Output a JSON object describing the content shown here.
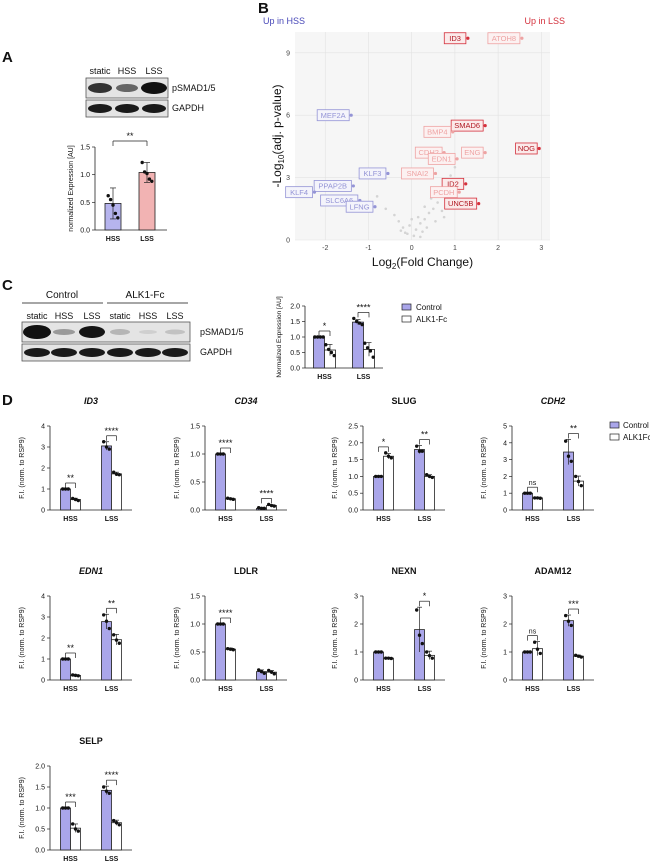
{
  "panel_labels": {
    "a": "A",
    "b": "B",
    "c": "C",
    "d": "D"
  },
  "colors": {
    "control": "#aaa6ea",
    "lss_pink": "#f2b3b3",
    "hss_blue": "#b6b4ee",
    "sig_red": "#d4303c",
    "up_hss": "#4848b8",
    "up_lss": "#d4303c"
  },
  "blot_a": {
    "lanes": [
      "static",
      "HSS",
      "LSS"
    ],
    "rows": [
      "pSMAD1/5",
      "GAPDH"
    ]
  },
  "blot_c": {
    "groups": [
      "Control",
      "ALK1-Fc"
    ],
    "lanes": [
      "static",
      "HSS",
      "LSS",
      "static",
      "HSS",
      "LSS"
    ],
    "rows": [
      "pSMAD1/5",
      "GAPDH"
    ]
  },
  "legend": {
    "control": "Control",
    "alk1fc_c": "ALK1-Fc",
    "alk1fc_d": "ALK1Fc"
  },
  "volcano": {
    "up_hss": "Up in HSS",
    "up_lss": "Up in LSS",
    "genes": [
      "MEF2A",
      "KLF3",
      "PPAP2B",
      "KLF4",
      "SLC6A6",
      "LFNG",
      "ID3",
      "ATOH8",
      "SMAD6",
      "NOG",
      "BMP4",
      "ENG",
      "CDH2",
      "EDN1",
      "SNAI2",
      "ID2",
      "PCDH",
      "UNC5B"
    ]
  },
  "chart_data": [
    {
      "id": "A",
      "type": "bar",
      "categories": [
        "HSS",
        "LSS"
      ],
      "values": [
        0.48,
        1.04
      ],
      "errors": [
        0.28,
        0.18
      ],
      "points": [
        [
          0.62,
          0.55,
          0.45,
          0.3,
          0.22
        ],
        [
          1.22,
          1.05,
          1.02,
          0.92,
          0.88
        ]
      ],
      "ylabel": "normalized Expression [AU]",
      "ylim": [
        0,
        1.5
      ],
      "yticks": [
        0,
        0.5,
        1.0,
        1.5
      ],
      "sig": [
        {
          "label": "**"
        }
      ]
    },
    {
      "id": "B",
      "type": "scatter",
      "xlabel": "Log",
      "xlabel_sub": "2",
      "xlabel_tail": "(Fold Change)",
      "ylabel": "-Log",
      "ylabel_sub": "10",
      "ylabel_tail": "(adj. p-value)",
      "xlim": [
        -2.7,
        3.2
      ],
      "ylim": [
        0,
        10
      ],
      "xticks": [
        -2,
        -1,
        0,
        1,
        2,
        3
      ],
      "yticks": [
        0,
        3,
        6,
        9
      ],
      "labeled": [
        {
          "gene": "MEF2A",
          "x": -1.4,
          "y": 6.0,
          "side": "hss",
          "strong": false
        },
        {
          "gene": "KLF3",
          "x": -0.55,
          "y": 3.2,
          "side": "hss",
          "strong": false
        },
        {
          "gene": "PPAP2B",
          "x": -1.35,
          "y": 2.6,
          "side": "hss",
          "strong": false
        },
        {
          "gene": "KLF4",
          "x": -2.25,
          "y": 2.3,
          "side": "hss",
          "strong": false
        },
        {
          "gene": "SLC6A6",
          "x": -1.2,
          "y": 1.9,
          "side": "hss",
          "strong": false
        },
        {
          "gene": "LFNG",
          "x": -0.85,
          "y": 1.6,
          "side": "hss",
          "strong": false
        },
        {
          "gene": "ID3",
          "x": 1.3,
          "y": 9.7,
          "side": "lss",
          "strong": true
        },
        {
          "gene": "ATOH8",
          "x": 2.55,
          "y": 9.7,
          "side": "lss",
          "strong": false
        },
        {
          "gene": "SMAD6",
          "x": 1.7,
          "y": 5.5,
          "side": "lss",
          "strong": true
        },
        {
          "gene": "NOG",
          "x": 2.95,
          "y": 4.4,
          "side": "lss",
          "strong": true
        },
        {
          "gene": "BMP4",
          "x": 0.95,
          "y": 5.2,
          "side": "lss",
          "strong": false
        },
        {
          "gene": "ENG",
          "x": 1.7,
          "y": 4.2,
          "side": "lss",
          "strong": false
        },
        {
          "gene": "CDH2",
          "x": 0.75,
          "y": 4.2,
          "side": "lss",
          "strong": false
        },
        {
          "gene": "EDN1",
          "x": 1.05,
          "y": 3.9,
          "side": "lss",
          "strong": false
        },
        {
          "gene": "SNAI2",
          "x": 0.55,
          "y": 3.2,
          "side": "lss",
          "strong": false
        },
        {
          "gene": "ID2",
          "x": 1.25,
          "y": 2.7,
          "side": "lss",
          "strong": true
        },
        {
          "gene": "PCDH",
          "x": 1.1,
          "y": 2.3,
          "side": "lss",
          "strong": false
        },
        {
          "gene": "UNC5B",
          "x": 1.55,
          "y": 1.75,
          "side": "lss",
          "strong": true
        }
      ],
      "background": [
        [
          -0.1,
          0.3
        ],
        [
          0.1,
          0.5
        ],
        [
          0.2,
          0.8
        ],
        [
          -0.2,
          0.6
        ],
        [
          0.3,
          1.0
        ],
        [
          0.05,
          0.2
        ],
        [
          0.4,
          1.3
        ],
        [
          -0.3,
          0.9
        ],
        [
          0.5,
          1.5
        ],
        [
          0.15,
          1.1
        ],
        [
          -0.05,
          0.7
        ],
        [
          0.25,
          0.4
        ],
        [
          0.6,
          1.8
        ],
        [
          -0.4,
          1.2
        ],
        [
          0.35,
          0.6
        ],
        [
          0.45,
          2.0
        ],
        [
          0.7,
          1.4
        ],
        [
          0.8,
          2.5
        ],
        [
          0.9,
          3.1
        ],
        [
          -0.6,
          1.5
        ],
        [
          0.0,
          1.0
        ],
        [
          0.55,
          0.9
        ],
        [
          0.3,
          1.6
        ],
        [
          -0.15,
          0.35
        ],
        [
          0.65,
          2.2
        ],
        [
          1.0,
          3.5
        ],
        [
          -0.8,
          2.1
        ],
        [
          0.2,
          0.15
        ],
        [
          0.75,
          1.1
        ],
        [
          -0.25,
          0.45
        ]
      ]
    },
    {
      "id": "C",
      "type": "bar",
      "categories": [
        "HSS",
        "LSS"
      ],
      "series": [
        {
          "name": "Control",
          "values": [
            1.0,
            1.48
          ],
          "errors": [
            0.0,
            0.08
          ],
          "points": [
            [
              1.0,
              1.0,
              1.0,
              1.0
            ],
            [
              1.6,
              1.5,
              1.45,
              1.4
            ]
          ]
        },
        {
          "name": "ALK1-Fc",
          "values": [
            0.58,
            0.6
          ],
          "errors": [
            0.18,
            0.22
          ],
          "points": [
            [
              0.75,
              0.6,
              0.5,
              0.4
            ],
            [
              0.8,
              0.65,
              0.55,
              0.35
            ]
          ]
        }
      ],
      "ylabel": "Normalized Expression [AU]",
      "ylim": [
        0,
        2.0
      ],
      "yticks": [
        0.0,
        0.5,
        1.0,
        1.5,
        2.0
      ],
      "sig": [
        "*",
        "****"
      ]
    },
    {
      "id": "ID3",
      "type": "bar",
      "title": "ID3",
      "italic": true,
      "categories": [
        "HSS",
        "LSS"
      ],
      "series": [
        {
          "name": "Control",
          "values": [
            1.0,
            3.05
          ],
          "errors": [
            0.0,
            0.2
          ],
          "points": [
            [
              1.0,
              1.0,
              1.0
            ],
            [
              3.25,
              3.0,
              2.9
            ]
          ]
        },
        {
          "name": "ALK1Fc",
          "values": [
            0.5,
            1.72
          ],
          "errors": [
            0.06,
            0.08
          ],
          "points": [
            [
              0.55,
              0.5,
              0.45
            ],
            [
              1.8,
              1.7,
              1.68
            ]
          ]
        }
      ],
      "ylabel": "F.I. (norm. to RSP9)",
      "ylim": [
        0,
        4
      ],
      "yticks": [
        0,
        1,
        2,
        3,
        4
      ],
      "sig": [
        "**",
        "****"
      ]
    },
    {
      "id": "CD34",
      "type": "bar",
      "title": "CD34",
      "italic": true,
      "categories": [
        "HSS",
        "LSS"
      ],
      "series": [
        {
          "name": "Control",
          "values": [
            1.0,
            0.03
          ],
          "errors": [
            0.0,
            0.01
          ],
          "points": [
            [
              1.0,
              1.0,
              1.0
            ],
            [
              0.04,
              0.03,
              0.03
            ]
          ]
        },
        {
          "name": "ALK1Fc",
          "values": [
            0.2,
            0.08
          ],
          "errors": [
            0.01,
            0.015
          ],
          "points": [
            [
              0.21,
              0.2,
              0.19
            ],
            [
              0.1,
              0.08,
              0.07
            ]
          ]
        }
      ],
      "ylabel": "F.I. (norm. to RSP9)",
      "ylim": [
        0,
        1.5
      ],
      "yticks": [
        0.0,
        0.5,
        1.0,
        1.5
      ],
      "sig": [
        "****",
        "****"
      ]
    },
    {
      "id": "SLUG",
      "type": "bar",
      "title": "SLUG",
      "italic": false,
      "categories": [
        "HSS",
        "LSS"
      ],
      "series": [
        {
          "name": "Control",
          "values": [
            1.0,
            1.8
          ],
          "errors": [
            0.0,
            0.12
          ],
          "points": [
            [
              1.0,
              1.0,
              1.0
            ],
            [
              1.9,
              1.75,
              1.75
            ]
          ]
        },
        {
          "name": "ALK1Fc",
          "values": [
            1.6,
            1.0
          ],
          "errors": [
            0.08,
            0.05
          ],
          "points": [
            [
              1.7,
              1.6,
              1.55
            ],
            [
              1.05,
              1.0,
              0.97
            ]
          ]
        }
      ],
      "ylabel": "F.I. (norm. to RSP9)",
      "ylim": [
        0,
        2.5
      ],
      "yticks": [
        0.0,
        0.5,
        1.0,
        1.5,
        2.0,
        2.5
      ],
      "sig": [
        "*",
        "**"
      ]
    },
    {
      "id": "CDH2",
      "type": "bar",
      "title": "CDH2",
      "italic": true,
      "categories": [
        "HSS",
        "LSS"
      ],
      "series": [
        {
          "name": "Control",
          "values": [
            1.0,
            3.45
          ],
          "errors": [
            0.0,
            0.75
          ],
          "points": [
            [
              1.0,
              1.0,
              1.0
            ],
            [
              4.1,
              3.2,
              2.9
            ]
          ]
        },
        {
          "name": "ALK1Fc",
          "values": [
            0.72,
            1.72
          ],
          "errors": [
            0.02,
            0.3
          ],
          "points": [
            [
              0.72,
              0.72,
              0.7
            ],
            [
              2.0,
              1.7,
              1.45
            ]
          ]
        }
      ],
      "ylabel": "F.I. (norm. to RSP9)",
      "ylim": [
        0,
        5
      ],
      "yticks": [
        0,
        1,
        2,
        3,
        4,
        5
      ],
      "sig": [
        "ns",
        "**"
      ]
    },
    {
      "id": "EDN1",
      "type": "bar",
      "title": "EDN1",
      "italic": true,
      "categories": [
        "HSS",
        "LSS"
      ],
      "series": [
        {
          "name": "Control",
          "values": [
            1.0,
            2.78
          ],
          "errors": [
            0.0,
            0.35
          ],
          "points": [
            [
              1.0,
              1.0,
              1.0
            ],
            [
              3.1,
              2.8,
              2.45
            ]
          ]
        },
        {
          "name": "ALK1Fc",
          "values": [
            0.22,
            1.92
          ],
          "errors": [
            0.03,
            0.25
          ],
          "points": [
            [
              0.24,
              0.22,
              0.2
            ],
            [
              2.15,
              1.9,
              1.75
            ]
          ]
        }
      ],
      "ylabel": "F.I. (norm. to RSP9)",
      "ylim": [
        0,
        4
      ],
      "yticks": [
        0,
        1,
        2,
        3,
        4
      ],
      "sig": [
        "**",
        "**"
      ]
    },
    {
      "id": "LDLR",
      "type": "bar",
      "title": "LDLR",
      "italic": false,
      "categories": [
        "HSS",
        "LSS"
      ],
      "series": [
        {
          "name": "Control",
          "values": [
            1.0,
            0.15
          ],
          "errors": [
            0.0,
            0.03
          ],
          "points": [
            [
              1.0,
              1.0,
              1.0
            ],
            [
              0.18,
              0.15,
              0.12
            ]
          ]
        },
        {
          "name": "ALK1Fc",
          "values": [
            0.55,
            0.14
          ],
          "errors": [
            0.02,
            0.03
          ],
          "points": [
            [
              0.56,
              0.55,
              0.54
            ],
            [
              0.17,
              0.14,
              0.11
            ]
          ]
        }
      ],
      "ylabel": "F.I. (norm. to RSP9)",
      "ylim": [
        0,
        1.5
      ],
      "yticks": [
        0.0,
        0.5,
        1.0,
        1.5
      ],
      "sig": [
        "****"
      ]
    },
    {
      "id": "NEXN",
      "type": "bar",
      "title": "NEXN",
      "italic": false,
      "categories": [
        "HSS",
        "LSS"
      ],
      "series": [
        {
          "name": "Control",
          "values": [
            1.0,
            1.8
          ],
          "errors": [
            0.0,
            0.8
          ],
          "points": [
            [
              1.0,
              1.0,
              1.0
            ],
            [
              2.5,
              1.6,
              1.3
            ]
          ]
        },
        {
          "name": "ALK1Fc",
          "values": [
            0.78,
            0.88
          ],
          "errors": [
            0.02,
            0.15
          ],
          "points": [
            [
              0.78,
              0.78,
              0.77
            ],
            [
              1.0,
              0.87,
              0.78
            ]
          ]
        }
      ],
      "ylabel": "F.I. (norm. to RSP9)",
      "ylim": [
        0,
        3
      ],
      "yticks": [
        0,
        1,
        2,
        3
      ],
      "sig": [
        "*"
      ]
    },
    {
      "id": "ADAM12",
      "type": "bar",
      "title": "ADAM12",
      "italic": false,
      "categories": [
        "HSS",
        "LSS"
      ],
      "series": [
        {
          "name": "Control",
          "values": [
            1.0,
            2.12
          ],
          "errors": [
            0.0,
            0.2
          ],
          "points": [
            [
              1.0,
              1.0,
              1.0
            ],
            [
              2.3,
              2.1,
              1.95
            ]
          ]
        },
        {
          "name": "ALK1Fc",
          "values": [
            1.12,
            0.85
          ],
          "errors": [
            0.25,
            0.04
          ],
          "points": [
            [
              1.35,
              1.1,
              0.95
            ],
            [
              0.88,
              0.85,
              0.82
            ]
          ]
        }
      ],
      "ylabel": "F.I. (norm. to RSP9)",
      "ylim": [
        0,
        3
      ],
      "yticks": [
        0,
        1,
        2,
        3
      ],
      "sig": [
        "ns",
        "***"
      ]
    },
    {
      "id": "SELP",
      "type": "bar",
      "title": "SELP",
      "italic": false,
      "categories": [
        "HSS",
        "LSS"
      ],
      "series": [
        {
          "name": "Control",
          "values": [
            1.0,
            1.42
          ],
          "errors": [
            0.0,
            0.1
          ],
          "points": [
            [
              1.0,
              1.0,
              1.0
            ],
            [
              1.5,
              1.4,
              1.35
            ]
          ]
        },
        {
          "name": "ALK1Fc",
          "values": [
            0.52,
            0.65
          ],
          "errors": [
            0.1,
            0.06
          ],
          "points": [
            [
              0.62,
              0.5,
              0.45
            ],
            [
              0.7,
              0.65,
              0.6
            ]
          ]
        }
      ],
      "ylabel": "F.I. (norm. to RSP9)",
      "ylim": [
        0,
        2.0
      ],
      "yticks": [
        0.0,
        0.5,
        1.0,
        1.5,
        2.0
      ],
      "sig": [
        "***",
        "****"
      ]
    }
  ]
}
